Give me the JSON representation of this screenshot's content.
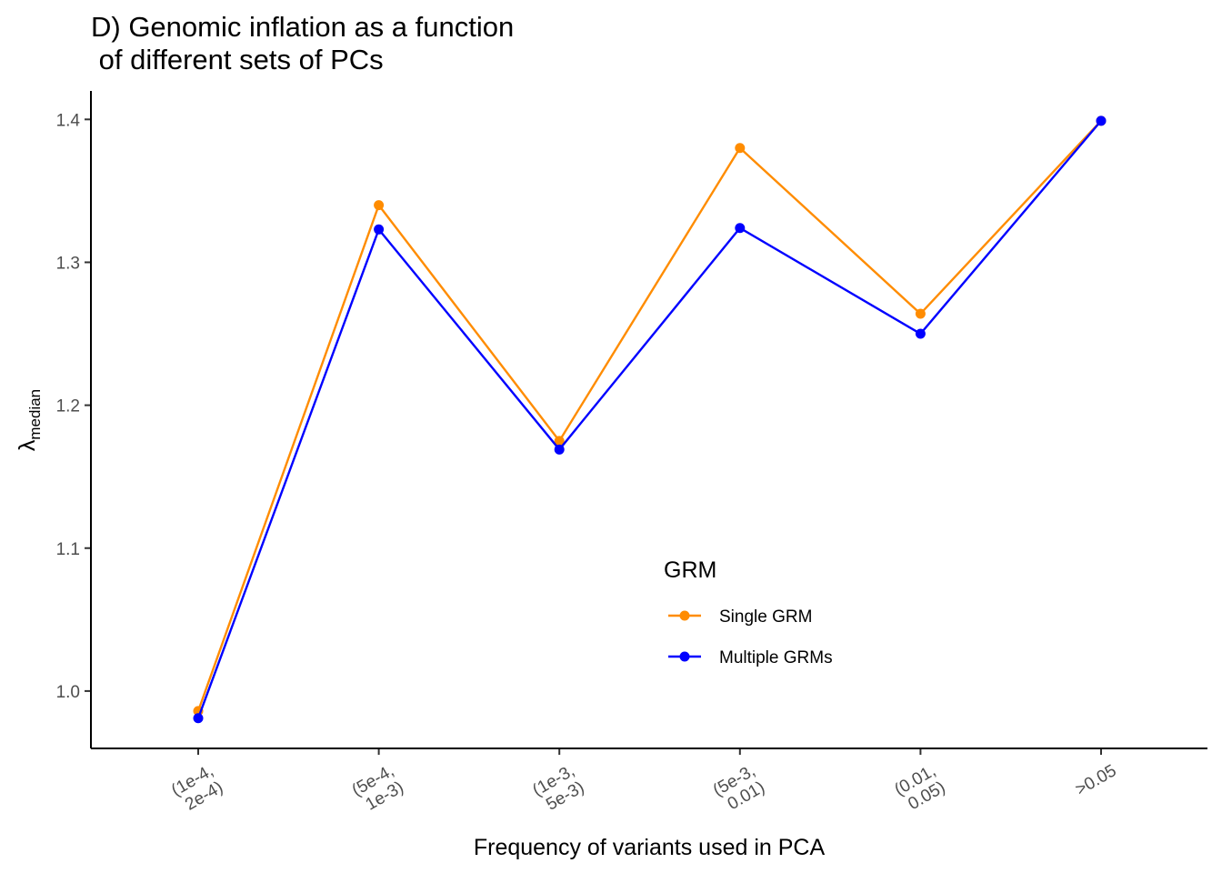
{
  "chart_data": {
    "type": "line",
    "title": "D) Genomic inflation as a function\n of different sets of PCs",
    "xlabel": "Frequency of variants used in PCA",
    "ylabel": "λ",
    "ylabel_subscript": "median",
    "categories": [
      "(1e-4,\n2e-4)",
      "(5e-4,\n1e-3)",
      "(1e-3,\n5e-3)",
      "(5e-3,\n0.01)",
      "(0.01,\n0.05)",
      ">0.05"
    ],
    "ylim": [
      0.96,
      1.42
    ],
    "yticks": [
      1.0,
      1.1,
      1.2,
      1.3,
      1.4
    ],
    "ytick_labels": [
      "1.0",
      "1.1",
      "1.2",
      "1.3",
      "1.4"
    ],
    "grid": false,
    "legend": {
      "title": "GRM",
      "position": "inside-bottom-center"
    },
    "series": [
      {
        "name": "Single GRM",
        "color": "#FF8C00",
        "values": [
          0.986,
          1.34,
          1.175,
          1.38,
          1.264,
          1.399
        ]
      },
      {
        "name": "Multiple GRMs",
        "color": "#0000FF",
        "values": [
          0.981,
          1.323,
          1.169,
          1.324,
          1.25,
          1.399
        ]
      }
    ]
  }
}
